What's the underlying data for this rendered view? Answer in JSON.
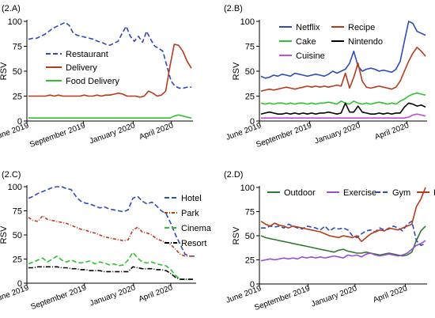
{
  "chart_data": [
    {
      "panel": "(2.A)",
      "type": "line",
      "ylabel": "RSV",
      "ylim": [
        0,
        100
      ],
      "yticks": [
        0,
        25,
        50,
        75,
        100
      ],
      "xticks": [
        "June 2019",
        "September 2019",
        "January 2020",
        "April 2020"
      ],
      "xtick_pos": [
        0,
        0.34,
        0.64,
        0.87
      ],
      "legend_position": "left",
      "series": [
        {
          "name": "Restaurant",
          "color": "#2e4bb8",
          "dash": "6,3",
          "values": [
            82,
            83,
            83,
            85,
            87,
            90,
            93,
            95,
            97,
            99,
            96,
            88,
            86,
            85,
            84,
            83,
            82,
            80,
            79,
            77,
            76,
            78,
            80,
            88,
            95,
            85,
            80,
            85,
            79,
            90,
            82,
            75,
            73,
            70,
            55,
            40,
            35,
            33,
            33,
            34,
            34
          ]
        },
        {
          "name": "Delivery",
          "color": "#b73a1d",
          "dash": "",
          "values": [
            25,
            25,
            25,
            25,
            25,
            26,
            25,
            26,
            25,
            25,
            25,
            25,
            25,
            26,
            25,
            25,
            26,
            25,
            26,
            26,
            27,
            28,
            27,
            25,
            25,
            25,
            24,
            25,
            30,
            28,
            25,
            26,
            30,
            55,
            77,
            76,
            70,
            60,
            53
          ]
        },
        {
          "name": "Food Delivery",
          "color": "#2ec32e",
          "dash": "",
          "values": [
            3,
            3,
            3,
            3,
            3,
            3,
            3,
            3,
            3,
            3,
            3,
            3,
            3,
            3,
            3,
            3,
            3,
            3,
            3,
            3,
            3,
            3,
            3,
            3,
            3,
            3,
            3,
            3,
            3,
            3,
            3,
            3,
            3,
            3,
            5,
            6,
            5,
            4,
            3
          ]
        }
      ]
    },
    {
      "panel": "(2.B)",
      "type": "line",
      "ylabel": "RSV",
      "ylim": [
        0,
        100
      ],
      "yticks": [
        0,
        25,
        50,
        75,
        100
      ],
      "xticks": [
        "June 2019",
        "September 2019",
        "January 2020",
        "April 2020"
      ],
      "xtick_pos": [
        0,
        0.3,
        0.59,
        0.88
      ],
      "legend_position": "top",
      "series": [
        {
          "name": "Netflix",
          "color": "#2e4bb8",
          "dash": "",
          "values": [
            45,
            43,
            44,
            46,
            45,
            47,
            46,
            45,
            48,
            47,
            46,
            45,
            46,
            47,
            46,
            45,
            47,
            50,
            48,
            50,
            52,
            58,
            70,
            55,
            50,
            52,
            53,
            52,
            50,
            51,
            50,
            49,
            52,
            60,
            80,
            100,
            98,
            90,
            88,
            86
          ]
        },
        {
          "name": "Recipe",
          "color": "#b73a1d",
          "dash": "",
          "values": [
            30,
            31,
            32,
            31,
            32,
            33,
            34,
            33,
            32,
            33,
            34,
            35,
            34,
            35,
            34,
            35,
            34,
            35,
            36,
            35,
            48,
            33,
            44,
            58,
            40,
            34,
            33,
            34,
            35,
            34,
            33,
            32,
            34,
            40,
            50,
            60,
            68,
            74,
            70,
            65
          ]
        },
        {
          "name": "Cake",
          "color": "#2ec32e",
          "dash": "",
          "values": [
            18,
            17,
            18,
            17,
            18,
            18,
            17,
            18,
            17,
            18,
            18,
            17,
            18,
            17,
            18,
            18,
            19,
            18,
            17,
            20,
            18,
            17,
            20,
            18,
            17,
            18,
            17,
            18,
            19,
            18,
            17,
            18,
            17,
            20,
            22,
            25,
            27,
            28,
            27,
            26
          ]
        },
        {
          "name": "Nintendo",
          "color": "#000000",
          "dash": "",
          "values": [
            7,
            8,
            9,
            8,
            7,
            7,
            8,
            7,
            8,
            7,
            8,
            7,
            8,
            7,
            8,
            8,
            9,
            8,
            7,
            8,
            18,
            9,
            9,
            15,
            9,
            8,
            7,
            7,
            8,
            7,
            8,
            7,
            8,
            8,
            14,
            18,
            17,
            15,
            16,
            14
          ]
        },
        {
          "name": "Cuisine",
          "color": "#c24dd6",
          "dash": "",
          "values": [
            3,
            3,
            3,
            3,
            3,
            3,
            3,
            3,
            3,
            3,
            3,
            3,
            3,
            3,
            3,
            3,
            3,
            3,
            3,
            3,
            3,
            3,
            3,
            3,
            3,
            3,
            3,
            3,
            3,
            3,
            3,
            3,
            3,
            3,
            3,
            4,
            6,
            7,
            6,
            5
          ]
        }
      ]
    },
    {
      "panel": "(2.C)",
      "type": "line",
      "ylabel": "RSV",
      "ylim": [
        0,
        100
      ],
      "yticks": [
        0,
        25,
        50,
        75,
        100
      ],
      "xticks": [
        "June 2019",
        "September 2019",
        "January 2020",
        "April 2020"
      ],
      "xtick_pos": [
        0,
        0.34,
        0.63,
        0.85
      ],
      "legend_position": "right",
      "series": [
        {
          "name": "Hotel",
          "color": "#2e4bb8",
          "dash": "6,3",
          "values": [
            88,
            90,
            93,
            95,
            97,
            99,
            100,
            100,
            98,
            97,
            90,
            85,
            83,
            82,
            80,
            78,
            79,
            77,
            76,
            75,
            74,
            76,
            88,
            90,
            85,
            82,
            84,
            80,
            75,
            72,
            62,
            50,
            40,
            30,
            28,
            28
          ]
        },
        {
          "name": "Park",
          "color": "#b73a1d",
          "dash": "4,2,1,2",
          "values": [
            68,
            65,
            64,
            70,
            66,
            65,
            64,
            63,
            62,
            60,
            58,
            56,
            55,
            53,
            52,
            50,
            48,
            47,
            46,
            45,
            44,
            45,
            55,
            58,
            53,
            52,
            50,
            46,
            44,
            42,
            40,
            35,
            30,
            28,
            28,
            28
          ]
        },
        {
          "name": "Cinema",
          "color": "#2ec32e",
          "dash": "6,3",
          "values": [
            20,
            22,
            24,
            26,
            22,
            25,
            28,
            24,
            22,
            24,
            22,
            21,
            22,
            23,
            20,
            22,
            21,
            19,
            20,
            18,
            19,
            24,
            32,
            26,
            22,
            21,
            22,
            20,
            19,
            18,
            14,
            8,
            4,
            4,
            4,
            4
          ]
        },
        {
          "name": "Resort",
          "color": "#000000",
          "dash": "6,2,1,2",
          "values": [
            16,
            16,
            17,
            17,
            17,
            17,
            17,
            16,
            16,
            15,
            15,
            14,
            14,
            13,
            13,
            13,
            12,
            12,
            12,
            12,
            12,
            12,
            17,
            16,
            15,
            15,
            15,
            14,
            14,
            13,
            10,
            6,
            4,
            4,
            4,
            4
          ]
        }
      ]
    },
    {
      "panel": "(2.D)",
      "type": "line",
      "ylabel": "RSV",
      "ylim": [
        0,
        100
      ],
      "yticks": [
        0,
        25,
        50,
        75,
        100
      ],
      "xticks": [
        "June 2019",
        "September 2019",
        "January 2020",
        "April 2020"
      ],
      "xtick_pos": [
        0,
        0.29,
        0.57,
        0.87
      ],
      "legend_position": "top",
      "series": [
        {
          "name": "Outdoor",
          "color": "#2e7b2e",
          "dash": "",
          "values": [
            50,
            48,
            47,
            46,
            45,
            44,
            43,
            42,
            41,
            40,
            39,
            38,
            37,
            36,
            35,
            34,
            33,
            35,
            36,
            34,
            33,
            32,
            32,
            33,
            32,
            31,
            30,
            31,
            32,
            31,
            30,
            29,
            30,
            33,
            45,
            55,
            60
          ]
        },
        {
          "name": "Exercise",
          "color": "#9b4dd6",
          "dash": "",
          "values": [
            24,
            25,
            26,
            25,
            26,
            27,
            26,
            27,
            26,
            28,
            27,
            28,
            27,
            28,
            27,
            28,
            29,
            28,
            27,
            30,
            29,
            30,
            28,
            31,
            32,
            30,
            29,
            30,
            31,
            30,
            29,
            30,
            32,
            36,
            40,
            42,
            45
          ]
        },
        {
          "name": "Gym",
          "color": "#2e4bb8",
          "dash": "6,3",
          "values": [
            58,
            58,
            60,
            59,
            60,
            58,
            62,
            60,
            58,
            57,
            60,
            59,
            58,
            56,
            60,
            55,
            58,
            57,
            58,
            56,
            50,
            48,
            52,
            55,
            56,
            54,
            58,
            56,
            57,
            60,
            58,
            55,
            62,
            65,
            45,
            40,
            42
          ]
        },
        {
          "name": "Plant",
          "color": "#b73a1d",
          "dash": "",
          "values": [
            65,
            62,
            60,
            63,
            61,
            60,
            58,
            60,
            59,
            58,
            57,
            56,
            55,
            54,
            52,
            50,
            49,
            48,
            50,
            49,
            48,
            50,
            44,
            48,
            52,
            54,
            56,
            55,
            58,
            57,
            56,
            58,
            60,
            62,
            80,
            88,
            100
          ]
        }
      ]
    }
  ]
}
